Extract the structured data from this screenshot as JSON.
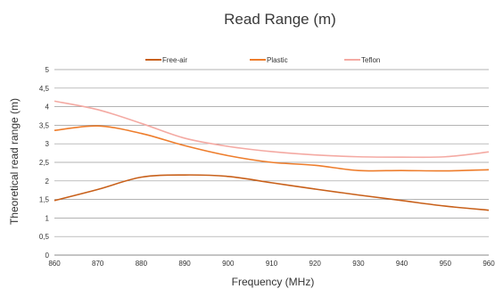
{
  "chart_data": {
    "type": "line",
    "title": "Read Range (m)",
    "xlabel": "Frequency (MHz)",
    "ylabel": "Theoretical read range (m)",
    "xlim": [
      860,
      960
    ],
    "ylim": [
      0,
      5
    ],
    "x_ticks": [
      "860",
      "870",
      "880",
      "890",
      "900",
      "910",
      "920",
      "930",
      "940",
      "950",
      "960"
    ],
    "y_ticks": [
      "0",
      "0,5",
      "1",
      "1,5",
      "2",
      "2,5",
      "3",
      "3,5",
      "4",
      "4,5",
      "5"
    ],
    "grid": "horizontal",
    "legend_position": "top",
    "x": [
      860,
      870,
      880,
      890,
      900,
      910,
      920,
      930,
      940,
      950,
      960
    ],
    "series": [
      {
        "name": "Free-air",
        "color": "#c8601a",
        "values": [
          1.47,
          1.77,
          2.1,
          2.16,
          2.12,
          1.95,
          1.78,
          1.62,
          1.47,
          1.32,
          1.21
        ]
      },
      {
        "name": "Plastic",
        "color": "#ee7d2c",
        "values": [
          3.36,
          3.48,
          3.28,
          2.95,
          2.68,
          2.5,
          2.42,
          2.28,
          2.28,
          2.27,
          2.3
        ]
      },
      {
        "name": "Teflon",
        "color": "#f4aaa3",
        "values": [
          4.15,
          3.92,
          3.55,
          3.15,
          2.93,
          2.79,
          2.7,
          2.65,
          2.64,
          2.65,
          2.78
        ]
      }
    ]
  }
}
